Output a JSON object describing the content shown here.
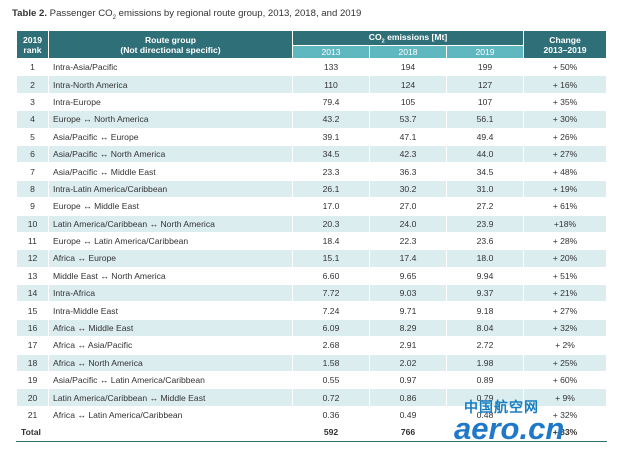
{
  "caption": {
    "label": "Table 2.",
    "text_before": " Passenger CO",
    "subscript": "2",
    "text_after": " emissions by regional route group, 2013, 2018, and 2019"
  },
  "header": {
    "rank_line1": "2019",
    "rank_line2": "rank",
    "route_line1": "Route group",
    "route_line2": "(Not directional specific)",
    "co2_before": "CO",
    "co2_sub": "2",
    "co2_after": " emissions [Mt]",
    "year_2013": "2013",
    "year_2018": "2018",
    "year_2019": "2019",
    "change_line1": "Change",
    "change_line2": "2013–2019"
  },
  "rows": [
    {
      "rank": "1",
      "route": "Intra-Asia/Pacific",
      "v2013": "133",
      "v2018": "194",
      "v2019": "199",
      "change": "+ 50%"
    },
    {
      "rank": "2",
      "route": "Intra-North America",
      "v2013": "110",
      "v2018": "124",
      "v2019": "127",
      "change": "+ 16%"
    },
    {
      "rank": "3",
      "route": "Intra-Europe",
      "v2013": "79.4",
      "v2018": "105",
      "v2019": "107",
      "change": "+ 35%"
    },
    {
      "rank": "4",
      "route": "Europe ↔ North America",
      "v2013": "43.2",
      "v2018": "53.7",
      "v2019": "56.1",
      "change": "+ 30%"
    },
    {
      "rank": "5",
      "route": "Asia/Pacific ↔ Europe",
      "v2013": "39.1",
      "v2018": "47.1",
      "v2019": "49.4",
      "change": "+ 26%"
    },
    {
      "rank": "6",
      "route": "Asia/Pacific ↔ North America",
      "v2013": "34.5",
      "v2018": "42.3",
      "v2019": "44.0",
      "change": "+ 27%"
    },
    {
      "rank": "7",
      "route": "Asia/Pacific ↔ Middle East",
      "v2013": "23.3",
      "v2018": "36.3",
      "v2019": "34.5",
      "change": "+ 48%"
    },
    {
      "rank": "8",
      "route": "Intra-Latin America/Caribbean",
      "v2013": "26.1",
      "v2018": "30.2",
      "v2019": "31.0",
      "change": "+ 19%"
    },
    {
      "rank": "9",
      "route": "Europe ↔ Middle East",
      "v2013": "17.0",
      "v2018": "27.0",
      "v2019": "27.2",
      "change": "+ 61%"
    },
    {
      "rank": "10",
      "route": "Latin America/Caribbean ↔ North America",
      "v2013": "20.3",
      "v2018": "24.0",
      "v2019": "23.9",
      "change": "+18%"
    },
    {
      "rank": "11",
      "route": "Europe ↔ Latin America/Caribbean",
      "v2013": "18.4",
      "v2018": "22.3",
      "v2019": "23.6",
      "change": "+ 28%"
    },
    {
      "rank": "12",
      "route": "Africa ↔ Europe",
      "v2013": "15.1",
      "v2018": "17.4",
      "v2019": "18.0",
      "change": "+ 20%"
    },
    {
      "rank": "13",
      "route": "Middle East ↔ North America",
      "v2013": "6.60",
      "v2018": "9.65",
      "v2019": "9.94",
      "change": "+ 51%"
    },
    {
      "rank": "14",
      "route": "Intra-Africa",
      "v2013": "7.72",
      "v2018": "9.03",
      "v2019": "9.37",
      "change": "+ 21%"
    },
    {
      "rank": "15",
      "route": "Intra-Middle East",
      "v2013": "7.24",
      "v2018": "9.71",
      "v2019": "9.18",
      "change": "+ 27%"
    },
    {
      "rank": "16",
      "route": "Africa ↔ Middle East",
      "v2013": "6.09",
      "v2018": "8.29",
      "v2019": "8.04",
      "change": "+ 32%"
    },
    {
      "rank": "17",
      "route": "Africa ↔ Asia/Pacific",
      "v2013": "2.68",
      "v2018": "2.91",
      "v2019": "2.72",
      "change": "+ 2%"
    },
    {
      "rank": "18",
      "route": "Africa ↔ North America",
      "v2013": "1.58",
      "v2018": "2.02",
      "v2019": "1.98",
      "change": "+ 25%"
    },
    {
      "rank": "19",
      "route": "Asia/Pacific ↔ Latin America/Caribbean",
      "v2013": "0.55",
      "v2018": "0.97",
      "v2019": "0.89",
      "change": "+ 60%"
    },
    {
      "rank": "20",
      "route": "Latin America/Caribbean ↔ Middle East",
      "v2013": "0.72",
      "v2018": "0.86",
      "v2019": "0.79",
      "change": "+ 9%"
    },
    {
      "rank": "21",
      "route": "Africa ↔ Latin America/Caribbean",
      "v2013": "0.36",
      "v2018": "0.49",
      "v2019": "0.48",
      "change": "+ 32%"
    }
  ],
  "total": {
    "label": "Total",
    "v2013": "592",
    "v2018": "766",
    "v2019": "",
    "change": "+ 33%"
  },
  "watermark": {
    "cn": "中国航空网",
    "en": "aero.cn"
  },
  "colors": {
    "header_dark": "#2e6f78",
    "header_light": "#5fb7c0",
    "row_stripe": "#dcedf0",
    "watermark": "#1f78c8"
  }
}
